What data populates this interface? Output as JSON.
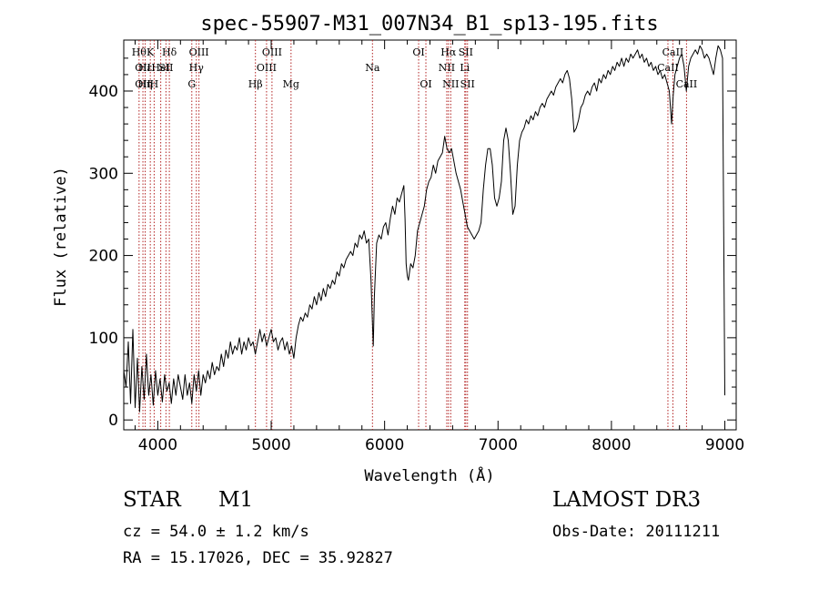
{
  "chart_data": {
    "type": "line",
    "title": "spec-55907-M31_007N34_B1_sp13-195.fits",
    "xlabel": "Wavelength (Å)",
    "ylabel": "Flux (relative)",
    "xlim": [
      3700,
      9100
    ],
    "ylim": [
      -12,
      462
    ],
    "xticks": [
      4000,
      5000,
      6000,
      7000,
      8000,
      9000
    ],
    "yticks": [
      0,
      100,
      200,
      300,
      400
    ],
    "line_color": "#000000",
    "marker_color": "#b22222",
    "series": [
      {
        "points": [
          [
            3700,
            60
          ],
          [
            3720,
            40
          ],
          [
            3740,
            95
          ],
          [
            3760,
            20
          ],
          [
            3780,
            110
          ],
          [
            3800,
            15
          ],
          [
            3820,
            75
          ],
          [
            3840,
            10
          ],
          [
            3860,
            65
          ],
          [
            3880,
            25
          ],
          [
            3900,
            80
          ],
          [
            3920,
            30
          ],
          [
            3940,
            55
          ],
          [
            3960,
            18
          ],
          [
            3980,
            60
          ],
          [
            4000,
            30
          ],
          [
            4020,
            50
          ],
          [
            4040,
            22
          ],
          [
            4060,
            55
          ],
          [
            4080,
            35
          ],
          [
            4100,
            45
          ],
          [
            4120,
            20
          ],
          [
            4140,
            50
          ],
          [
            4160,
            30
          ],
          [
            4180,
            55
          ],
          [
            4200,
            40
          ],
          [
            4220,
            25
          ],
          [
            4240,
            55
          ],
          [
            4260,
            30
          ],
          [
            4280,
            45
          ],
          [
            4300,
            20
          ],
          [
            4320,
            55
          ],
          [
            4340,
            35
          ],
          [
            4360,
            60
          ],
          [
            4380,
            30
          ],
          [
            4400,
            55
          ],
          [
            4420,
            45
          ],
          [
            4440,
            60
          ],
          [
            4460,
            50
          ],
          [
            4480,
            70
          ],
          [
            4500,
            55
          ],
          [
            4520,
            65
          ],
          [
            4540,
            60
          ],
          [
            4560,
            80
          ],
          [
            4580,
            65
          ],
          [
            4600,
            85
          ],
          [
            4620,
            75
          ],
          [
            4640,
            95
          ],
          [
            4660,
            80
          ],
          [
            4680,
            90
          ],
          [
            4700,
            85
          ],
          [
            4720,
            100
          ],
          [
            4740,
            80
          ],
          [
            4760,
            95
          ],
          [
            4780,
            85
          ],
          [
            4800,
            100
          ],
          [
            4820,
            90
          ],
          [
            4840,
            95
          ],
          [
            4860,
            80
          ],
          [
            4880,
            95
          ],
          [
            4900,
            110
          ],
          [
            4920,
            95
          ],
          [
            4940,
            105
          ],
          [
            4960,
            90
          ],
          [
            4980,
            100
          ],
          [
            5000,
            110
          ],
          [
            5020,
            95
          ],
          [
            5040,
            100
          ],
          [
            5060,
            85
          ],
          [
            5080,
            95
          ],
          [
            5100,
            100
          ],
          [
            5120,
            85
          ],
          [
            5140,
            95
          ],
          [
            5160,
            80
          ],
          [
            5180,
            90
          ],
          [
            5200,
            75
          ],
          [
            5220,
            100
          ],
          [
            5240,
            115
          ],
          [
            5260,
            125
          ],
          [
            5280,
            120
          ],
          [
            5300,
            130
          ],
          [
            5320,
            125
          ],
          [
            5340,
            140
          ],
          [
            5360,
            135
          ],
          [
            5380,
            150
          ],
          [
            5400,
            140
          ],
          [
            5420,
            155
          ],
          [
            5440,
            145
          ],
          [
            5460,
            160
          ],
          [
            5480,
            150
          ],
          [
            5500,
            165
          ],
          [
            5520,
            160
          ],
          [
            5540,
            170
          ],
          [
            5560,
            165
          ],
          [
            5580,
            180
          ],
          [
            5600,
            175
          ],
          [
            5620,
            190
          ],
          [
            5640,
            185
          ],
          [
            5660,
            195
          ],
          [
            5680,
            200
          ],
          [
            5700,
            205
          ],
          [
            5720,
            200
          ],
          [
            5740,
            215
          ],
          [
            5760,
            210
          ],
          [
            5780,
            225
          ],
          [
            5800,
            220
          ],
          [
            5820,
            230
          ],
          [
            5840,
            215
          ],
          [
            5860,
            220
          ],
          [
            5880,
            170
          ],
          [
            5890,
            130
          ],
          [
            5900,
            90
          ],
          [
            5910,
            150
          ],
          [
            5930,
            215
          ],
          [
            5950,
            225
          ],
          [
            5970,
            220
          ],
          [
            5990,
            235
          ],
          [
            6010,
            240
          ],
          [
            6030,
            225
          ],
          [
            6050,
            245
          ],
          [
            6070,
            260
          ],
          [
            6090,
            250
          ],
          [
            6110,
            270
          ],
          [
            6130,
            265
          ],
          [
            6150,
            275
          ],
          [
            6170,
            285
          ],
          [
            6180,
            245
          ],
          [
            6190,
            190
          ],
          [
            6200,
            175
          ],
          [
            6210,
            170
          ],
          [
            6230,
            190
          ],
          [
            6250,
            185
          ],
          [
            6270,
            200
          ],
          [
            6290,
            230
          ],
          [
            6310,
            240
          ],
          [
            6330,
            250
          ],
          [
            6350,
            260
          ],
          [
            6370,
            280
          ],
          [
            6390,
            290
          ],
          [
            6410,
            295
          ],
          [
            6430,
            310
          ],
          [
            6450,
            300
          ],
          [
            6470,
            315
          ],
          [
            6490,
            320
          ],
          [
            6510,
            325
          ],
          [
            6530,
            345
          ],
          [
            6550,
            330
          ],
          [
            6570,
            325
          ],
          [
            6590,
            330
          ],
          [
            6610,
            315
          ],
          [
            6630,
            300
          ],
          [
            6650,
            290
          ],
          [
            6670,
            280
          ],
          [
            6690,
            265
          ],
          [
            6710,
            250
          ],
          [
            6730,
            235
          ],
          [
            6750,
            230
          ],
          [
            6770,
            225
          ],
          [
            6790,
            220
          ],
          [
            6810,
            225
          ],
          [
            6830,
            230
          ],
          [
            6850,
            240
          ],
          [
            6870,
            280
          ],
          [
            6890,
            310
          ],
          [
            6910,
            330
          ],
          [
            6930,
            330
          ],
          [
            6950,
            310
          ],
          [
            6970,
            270
          ],
          [
            6990,
            260
          ],
          [
            7010,
            270
          ],
          [
            7030,
            290
          ],
          [
            7050,
            340
          ],
          [
            7070,
            355
          ],
          [
            7090,
            340
          ],
          [
            7110,
            300
          ],
          [
            7130,
            250
          ],
          [
            7150,
            260
          ],
          [
            7170,
            310
          ],
          [
            7190,
            340
          ],
          [
            7210,
            350
          ],
          [
            7230,
            355
          ],
          [
            7250,
            365
          ],
          [
            7270,
            360
          ],
          [
            7290,
            370
          ],
          [
            7310,
            365
          ],
          [
            7330,
            375
          ],
          [
            7350,
            370
          ],
          [
            7370,
            380
          ],
          [
            7390,
            385
          ],
          [
            7410,
            380
          ],
          [
            7430,
            390
          ],
          [
            7450,
            395
          ],
          [
            7470,
            400
          ],
          [
            7490,
            395
          ],
          [
            7510,
            405
          ],
          [
            7530,
            410
          ],
          [
            7550,
            415
          ],
          [
            7570,
            410
          ],
          [
            7590,
            420
          ],
          [
            7610,
            425
          ],
          [
            7630,
            415
          ],
          [
            7650,
            390
          ],
          [
            7670,
            350
          ],
          [
            7690,
            355
          ],
          [
            7710,
            365
          ],
          [
            7730,
            380
          ],
          [
            7750,
            385
          ],
          [
            7770,
            395
          ],
          [
            7790,
            400
          ],
          [
            7810,
            395
          ],
          [
            7830,
            405
          ],
          [
            7850,
            410
          ],
          [
            7870,
            400
          ],
          [
            7890,
            415
          ],
          [
            7910,
            410
          ],
          [
            7930,
            420
          ],
          [
            7950,
            415
          ],
          [
            7970,
            425
          ],
          [
            7990,
            420
          ],
          [
            8010,
            430
          ],
          [
            8030,
            425
          ],
          [
            8050,
            435
          ],
          [
            8070,
            430
          ],
          [
            8090,
            440
          ],
          [
            8110,
            430
          ],
          [
            8130,
            440
          ],
          [
            8150,
            435
          ],
          [
            8170,
            445
          ],
          [
            8190,
            440
          ],
          [
            8210,
            445
          ],
          [
            8230,
            450
          ],
          [
            8250,
            440
          ],
          [
            8270,
            445
          ],
          [
            8290,
            435
          ],
          [
            8310,
            440
          ],
          [
            8330,
            430
          ],
          [
            8350,
            435
          ],
          [
            8370,
            425
          ],
          [
            8390,
            430
          ],
          [
            8410,
            420
          ],
          [
            8430,
            425
          ],
          [
            8450,
            415
          ],
          [
            8470,
            420
          ],
          [
            8490,
            410
          ],
          [
            8510,
            400
          ],
          [
            8530,
            360
          ],
          [
            8545,
            395
          ],
          [
            8560,
            420
          ],
          [
            8580,
            430
          ],
          [
            8600,
            440
          ],
          [
            8620,
            445
          ],
          [
            8640,
            430
          ],
          [
            8660,
            400
          ],
          [
            8680,
            430
          ],
          [
            8700,
            440
          ],
          [
            8720,
            445
          ],
          [
            8740,
            450
          ],
          [
            8760,
            445
          ],
          [
            8780,
            455
          ],
          [
            8800,
            450
          ],
          [
            8820,
            440
          ],
          [
            8840,
            445
          ],
          [
            8860,
            440
          ],
          [
            8880,
            430
          ],
          [
            8900,
            420
          ],
          [
            8920,
            440
          ],
          [
            8940,
            455
          ],
          [
            8960,
            450
          ],
          [
            8980,
            440
          ],
          [
            9000,
            30
          ]
        ]
      }
    ],
    "line_markers": [
      {
        "w": 3835,
        "label": "Hθ",
        "row": 0
      },
      {
        "w": 3869,
        "label": "OII",
        "row": 1
      },
      {
        "w": 3869,
        "label": "OII",
        "row": 2
      },
      {
        "w": 3889,
        "label": "Hε",
        "row": 1
      },
      {
        "w": 3889,
        "label": "Hη",
        "row": 2
      },
      {
        "w": 3934,
        "label": "K",
        "row": 0
      },
      {
        "w": 3968,
        "label": "H",
        "row": 2
      },
      {
        "w": 4026,
        "label": "HeI",
        "row": 1
      },
      {
        "w": 4072,
        "label": "SII",
        "row": 1
      },
      {
        "w": 4102,
        "label": "Hδ",
        "row": 0
      },
      {
        "w": 4300,
        "label": "G",
        "row": 2
      },
      {
        "w": 4340,
        "label": "Hγ",
        "row": 1
      },
      {
        "w": 4363,
        "label": "OIII",
        "row": 0
      },
      {
        "w": 4861,
        "label": "Hβ",
        "row": 2
      },
      {
        "w": 4959,
        "label": "OIII",
        "row": 1
      },
      {
        "w": 5007,
        "label": "OIII",
        "row": 0
      },
      {
        "w": 5175,
        "label": "Mg",
        "row": 2
      },
      {
        "w": 5893,
        "label": "Na",
        "row": 1
      },
      {
        "w": 6300,
        "label": "OI",
        "row": 0
      },
      {
        "w": 6364,
        "label": "OI",
        "row": 2
      },
      {
        "w": 6548,
        "label": "NII",
        "row": 1
      },
      {
        "w": 6563,
        "label": "Hα",
        "row": 0
      },
      {
        "w": 6583,
        "label": "NII",
        "row": 2
      },
      {
        "w": 6707,
        "label": "Li",
        "row": 1
      },
      {
        "w": 6716,
        "label": "SII",
        "row": 0
      },
      {
        "w": 6731,
        "label": "SII",
        "row": 2
      },
      {
        "w": 8498,
        "label": "CaII",
        "row": 1
      },
      {
        "w": 8542,
        "label": "CaII",
        "row": 0
      },
      {
        "w": 8662,
        "label": "CaII",
        "row": 2
      }
    ]
  },
  "info": {
    "object_type": "STAR",
    "object_class": "M1",
    "survey": "LAMOST DR3",
    "cz": "cz = 54.0 ± 1.2 km/s",
    "obs_date": "Obs-Date: 20111211",
    "radec": "RA =  15.17026, DEC =  35.92827"
  }
}
